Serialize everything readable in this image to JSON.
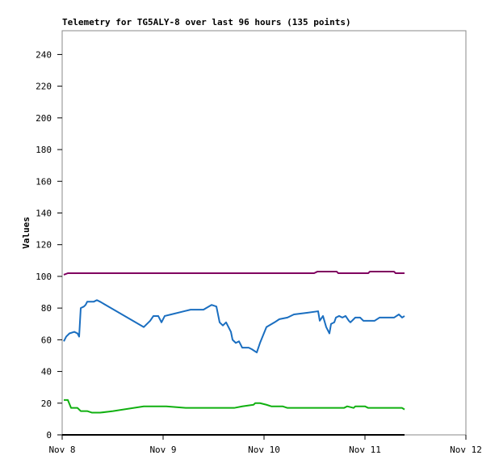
{
  "chart_data": {
    "type": "line",
    "title": "Telemetry for TG5ALY-8 over last 96 hours (135 points)",
    "y_label": "Values",
    "xlim": [
      0,
      4
    ],
    "ylim": [
      0,
      255
    ],
    "xticks": [
      {
        "value": 0,
        "label": "Nov 8"
      },
      {
        "value": 1,
        "label": "Nov 9"
      },
      {
        "value": 2,
        "label": "Nov 10"
      },
      {
        "value": 3,
        "label": "Nov 11"
      },
      {
        "value": 4,
        "label": "Nov 12"
      }
    ],
    "yticks": [
      0,
      20,
      40,
      60,
      80,
      100,
      120,
      140,
      160,
      180,
      200,
      220,
      240
    ],
    "grid": false,
    "series": [
      {
        "color": "#800060",
        "x": [
          0.016,
          0.056,
          2.496,
          2.528,
          2.72,
          2.736,
          3.032,
          3.048,
          3.288,
          3.304,
          3.392
        ],
        "values": [
          101,
          102,
          102,
          103,
          103,
          102,
          102,
          103,
          103,
          102,
          102
        ]
      },
      {
        "color": "#1a6ec0",
        "x": [
          0.016,
          0.04,
          0.072,
          0.12,
          0.152,
          0.168,
          0.184,
          0.216,
          0.232,
          0.248,
          0.28,
          0.312,
          0.344,
          0.376,
          0.808,
          0.872,
          0.904,
          0.952,
          0.984,
          1.016,
          1.08,
          1.208,
          1.272,
          1.4,
          1.48,
          1.528,
          1.56,
          1.592,
          1.624,
          1.672,
          1.688,
          1.72,
          1.752,
          1.784,
          1.848,
          1.88,
          1.928,
          1.96,
          2.024,
          2.104,
          2.152,
          2.232,
          2.296,
          2.424,
          2.536,
          2.552,
          2.584,
          2.616,
          2.632,
          2.648,
          2.664,
          2.696,
          2.712,
          2.744,
          2.776,
          2.808,
          2.84,
          2.856,
          2.904,
          2.952,
          2.984,
          3.096,
          3.144,
          3.288,
          3.336,
          3.368,
          3.392
        ],
        "values": [
          59,
          62,
          64,
          65,
          64,
          62,
          80,
          81,
          82,
          84,
          84,
          84,
          85,
          84,
          68,
          72,
          75,
          75,
          71,
          75,
          76,
          78,
          79,
          79,
          82,
          81,
          71,
          69,
          71,
          65,
          60,
          58,
          59,
          55,
          55,
          54,
          52,
          58,
          68,
          71,
          73,
          74,
          76,
          77,
          78,
          72,
          75,
          68,
          66,
          64,
          70,
          71,
          74,
          75,
          74,
          75,
          72,
          71,
          74,
          74,
          72,
          72,
          74,
          74,
          76,
          74,
          75
        ]
      },
      {
        "color": "#10b010",
        "x": [
          0.016,
          0.056,
          0.088,
          0.152,
          0.184,
          0.248,
          0.296,
          0.376,
          0.504,
          0.808,
          0.984,
          1.032,
          1.224,
          1.704,
          1.784,
          1.896,
          1.912,
          1.96,
          2.024,
          2.072,
          2.184,
          2.232,
          2.792,
          2.824,
          2.888,
          2.904,
          3.0,
          3.032,
          3.368,
          3.392
        ],
        "values": [
          22,
          22,
          17,
          17,
          15,
          15,
          14,
          14,
          15,
          18,
          18,
          18,
          17,
          17,
          18,
          19,
          20,
          20,
          19,
          18,
          18,
          17,
          17,
          18,
          17,
          18,
          18,
          17,
          17,
          16
        ]
      },
      {
        "color": "#000000",
        "x": [
          0,
          3.392
        ],
        "values": [
          0,
          0
        ]
      }
    ]
  }
}
